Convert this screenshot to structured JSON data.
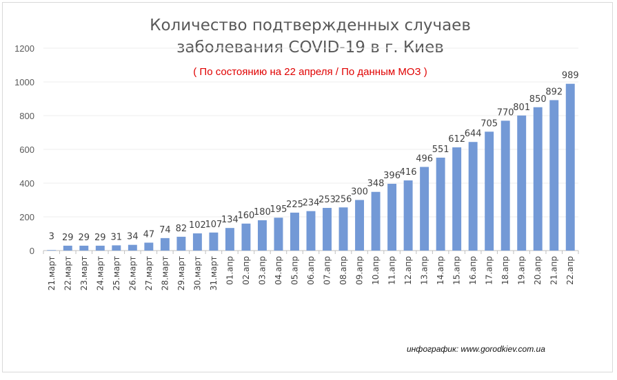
{
  "chart_data": {
    "type": "bar",
    "title_line1": "Количество подтвержденных случаев",
    "title_line2": "заболевания COVID-19 в г. Киев",
    "subtitle": "( По состоянию на 22 апреля / По данным МОЗ )",
    "credit": "инфографик: www.gorodkiev.com.ua",
    "xlabel": "",
    "ylabel": "",
    "ylim": [
      0,
      1200
    ],
    "yticks": [
      0,
      200,
      400,
      600,
      800,
      1000,
      1200
    ],
    "grid": true,
    "bar_color": "#7399d6",
    "categories": [
      "21.март",
      "22.март",
      "23.март",
      "24.март",
      "25.март",
      "26.март",
      "27.март",
      "28.март",
      "29.март",
      "30.март",
      "31.март",
      "01.апр",
      "02.апр",
      "03.апр",
      "04.апр",
      "05.апр",
      "06.апр",
      "07.апр",
      "08.апр",
      "09.апр",
      "10.апр",
      "11.апр",
      "12.апр",
      "13.апр",
      "14.апр",
      "15.апр",
      "16.апр",
      "17.апр",
      "18.апр",
      "19.апр",
      "20.апр",
      "21.апр",
      "22.апр"
    ],
    "values": [
      3,
      29,
      29,
      29,
      31,
      34,
      47,
      74,
      82,
      102,
      107,
      134,
      160,
      180,
      195,
      225,
      234,
      253,
      256,
      300,
      348,
      396,
      416,
      496,
      551,
      612,
      644,
      705,
      770,
      801,
      850,
      892,
      989
    ]
  }
}
